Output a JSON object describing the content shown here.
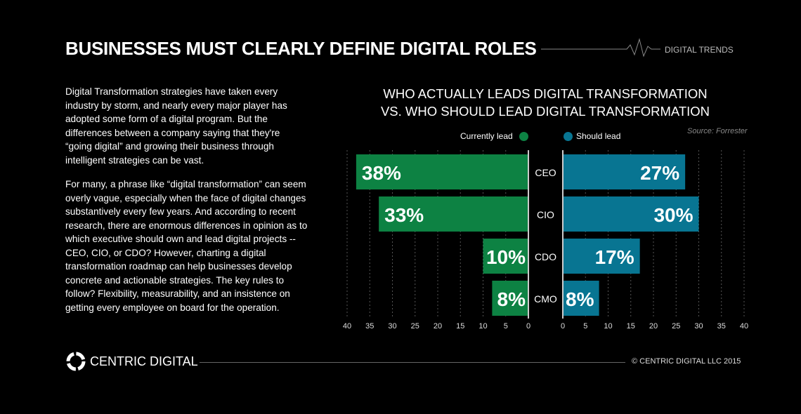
{
  "header": {
    "title": "BUSINESSES MUST CLEARLY DEFINE DIGITAL ROLES",
    "tag": "DIGITAL TRENDS"
  },
  "body": {
    "paragraphs": [
      "Digital Transformation strategies have taken every industry by storm, and nearly every major player has adopted some form of a digital program. But the differences between a company saying that they're “going digital” and growing their business through intelligent strategies can be vast.",
      "For many, a phrase like “digital transformation” can seem overly vague, especially when the face of digital changes substantively every few years. And according to recent research, there are enormous differences in opinion as to which executive should own and lead digital projects -- CEO, CIO, or CDO? However, charting a digital transformation roadmap can help businesses develop concrete and actionable strategies. The key rules to follow? Flexibility, measurability, and an insistence on getting every employee on board for the operation."
    ]
  },
  "chart_data": {
    "type": "bar",
    "orientation": "horizontal-diverging",
    "title_lines": [
      "WHO ACTUALLY LEADS DIGITAL TRANSFORMATION",
      "VS. WHO SHOULD LEAD DIGITAL TRANSFORMATION"
    ],
    "source": "Source: Forrester",
    "categories": [
      "CEO",
      "CIO",
      "CDO",
      "CMO"
    ],
    "series": [
      {
        "name": "Currently lead",
        "color": "#0d8243",
        "values": [
          38,
          33,
          10,
          8
        ],
        "labels": [
          "38%",
          "33%",
          "10%",
          "8%"
        ]
      },
      {
        "name": "Should lead",
        "color": "#087592",
        "values": [
          27,
          30,
          17,
          8
        ],
        "labels": [
          "27%",
          "30%",
          "17%",
          "8%"
        ]
      }
    ],
    "xlim": [
      0,
      40
    ],
    "ticks": [
      "0",
      "5",
      "10",
      "15",
      "20",
      "25",
      "30",
      "35",
      "40"
    ],
    "grid": true,
    "legend": "top"
  },
  "footer": {
    "brand": "CENTRIC DIGITAL",
    "copyright": "© CENTRIC DIGITAL LLC 2015"
  }
}
